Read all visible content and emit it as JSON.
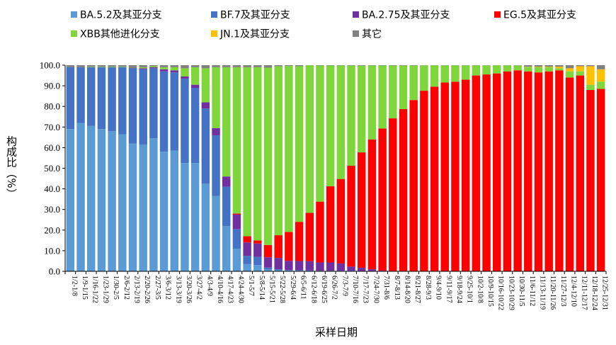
{
  "chart_data": {
    "type": "bar",
    "stacked": true,
    "title": "",
    "xlabel": "采样日期",
    "ylabel": "构成比（%）",
    "ylim": [
      0,
      100
    ],
    "yticks": [
      "0.0",
      "10.0",
      "20.0",
      "30.0",
      "40.0",
      "50.0",
      "60.0",
      "70.0",
      "80.0",
      "90.0",
      "100.0"
    ],
    "legend_position": "top",
    "categories": [
      "1/2-1/8",
      "1/9-1/15",
      "1/16-1/22",
      "1/23-1/29",
      "1/30-2/5",
      "2/6-2/12",
      "2/13-2/19",
      "2/20-2/26",
      "2/27-3/5",
      "3/6-3/12",
      "3/13-3/19",
      "3/20-3/26",
      "3/27-4/2",
      "4/3-4/9",
      "4/10-4/16",
      "4/17-4/23",
      "4/24-4/30",
      "5/1-5/7",
      "5/8-5/14",
      "5/15-5/21",
      "5/22-5/28",
      "5/29-6/4",
      "6/5-6/11",
      "6/12-6/18",
      "6/19-6/25",
      "6/26-7/2",
      "7/3-7/9",
      "7/10-7/16",
      "7/17-7/23",
      "7/24-7/30",
      "7/31-8/6",
      "8/7-8/13",
      "8/14-8/20",
      "8/21-8/27",
      "8/28-9/3",
      "9/4-9/10",
      "9/11-9/17",
      "9/18-9/24",
      "9/25-10/1",
      "10/2-10/8",
      "10/9-10/15",
      "10/16-10/22",
      "10/23-10/29",
      "10/30-11/5",
      "11/6-11/12",
      "11/13-11/19",
      "11/20-11/26",
      "11/27-12/3",
      "12/4-12/10",
      "12/11-12/17",
      "12/18-12/24",
      "12/25-12/31"
    ],
    "series": [
      {
        "name": "BA.5.2及其亚分支",
        "color": "#5b9bd5",
        "values": [
          69,
          72,
          70.5,
          69,
          68,
          66.5,
          62,
          61.5,
          64.5,
          58,
          58.5,
          52.5,
          52.5,
          42.5,
          36.5,
          22,
          11,
          3.5,
          3,
          0.8,
          0.5,
          0.3,
          0.3,
          0.2,
          0.2,
          0.2,
          0.2,
          0.2,
          0.1,
          0.1,
          0,
          0,
          0,
          0,
          0,
          0,
          0,
          0,
          0,
          0,
          0,
          0,
          0,
          0,
          0,
          0,
          0,
          0,
          0,
          0,
          0,
          0
        ]
      },
      {
        "name": "BF.7及其亚分支",
        "color": "#4472c4",
        "values": [
          30,
          27,
          28.5,
          30,
          31,
          32.5,
          36.5,
          36.5,
          34,
          39,
          38,
          41,
          36.5,
          36.5,
          29.5,
          19,
          9.5,
          4,
          4,
          1,
          0.5,
          0.3,
          0.2,
          0.2,
          0.1,
          0.1,
          0.1,
          0.1,
          0.1,
          0.1,
          0,
          0,
          0,
          0,
          0,
          0,
          0,
          0,
          0,
          0,
          0,
          0,
          0,
          0,
          0,
          0,
          0,
          0,
          0,
          0,
          0,
          0
        ]
      },
      {
        "name": "BA.2.75及其亚分支",
        "color": "#7030a0",
        "values": [
          0,
          0,
          0,
          0,
          0,
          0,
          0.3,
          0.5,
          0.5,
          1,
          1,
          1,
          1.5,
          3,
          3.5,
          5,
          7,
          6.5,
          6.5,
          5,
          5.5,
          4.5,
          4.5,
          4.5,
          4,
          4,
          3.5,
          2,
          1.5,
          0.8,
          0.3,
          0.2,
          0.2,
          0.1,
          0.1,
          0.1,
          0.1,
          0,
          0,
          0,
          0,
          0,
          0,
          0,
          0,
          0,
          0,
          0,
          0,
          0,
          0,
          0
        ]
      },
      {
        "name": "EG.5及其亚分支",
        "color": "#ff0000",
        "values": [
          0,
          0,
          0,
          0,
          0,
          0,
          0,
          0,
          0,
          0,
          0,
          0,
          0,
          0,
          0,
          0,
          0.5,
          3,
          1.5,
          6,
          11,
          14,
          19,
          23.5,
          29.5,
          37,
          41,
          49,
          56,
          63,
          69,
          74,
          78.5,
          83,
          87.5,
          89.5,
          91.5,
          92,
          93,
          95,
          95.5,
          96,
          97,
          97.5,
          97,
          96.5,
          97,
          97.5,
          94,
          95,
          88,
          88.5
        ]
      },
      {
        "name": "XBB其他进化分支",
        "color": "#7ed63a",
        "values": [
          0,
          0,
          0.2,
          0.2,
          0.2,
          0.2,
          0.2,
          0.5,
          0.5,
          1,
          1.5,
          4,
          8.5,
          16.5,
          29.5,
          53,
          71,
          82,
          84,
          86,
          82,
          80.5,
          75.5,
          71.5,
          66,
          58.5,
          55,
          48.5,
          42,
          35.8,
          30.5,
          25.6,
          21.1,
          16.7,
          12.3,
          10.3,
          8.3,
          7.9,
          6.9,
          4.9,
          4.4,
          3.9,
          2.9,
          2.4,
          2.2,
          2.5,
          2,
          1,
          3,
          2,
          2.5,
          3.5
        ]
      },
      {
        "name": "JN.1及其亚分支",
        "color": "#ffc000",
        "values": [
          0,
          0,
          0,
          0,
          0,
          0,
          0,
          0,
          0,
          0,
          0,
          0,
          0,
          0,
          0,
          0,
          0,
          0,
          0,
          0,
          0,
          0,
          0,
          0,
          0,
          0,
          0,
          0,
          0,
          0,
          0,
          0,
          0,
          0,
          0,
          0,
          0,
          0,
          0,
          0,
          0,
          0,
          0,
          0,
          0.1,
          0.3,
          0.3,
          0.8,
          1.5,
          2.5,
          9,
          6
        ]
      },
      {
        "name": "其它",
        "color": "#808080",
        "values": [
          1,
          1,
          0.8,
          0.8,
          0.8,
          0.8,
          1,
          1,
          0.5,
          1,
          1,
          1.5,
          1,
          1.5,
          1,
          1,
          1,
          1,
          1,
          1.2,
          0.5,
          0.4,
          0.5,
          0.1,
          0.2,
          0.2,
          0.2,
          0.2,
          0.3,
          0.2,
          0.2,
          0.2,
          0.2,
          0.2,
          0.1,
          0.1,
          0.1,
          0.1,
          0.1,
          0.1,
          0.1,
          0.1,
          0.1,
          0.1,
          0.7,
          0.7,
          0.7,
          0.7,
          1.5,
          0.5,
          0.5,
          2
        ]
      }
    ]
  }
}
